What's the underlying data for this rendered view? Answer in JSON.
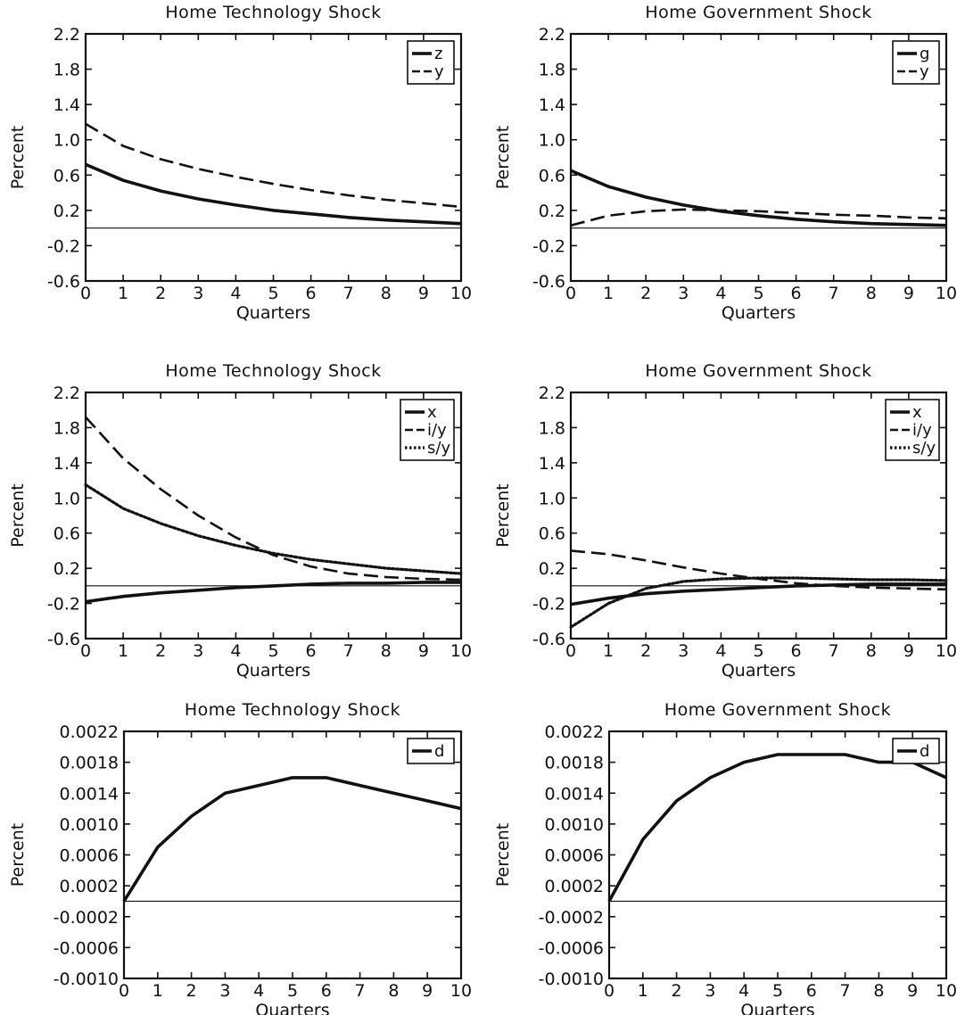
{
  "chart_data": [
    {
      "type": "line",
      "title": "Home Technology Shock",
      "xlabel": "Quarters",
      "ylabel": "Percent",
      "xlim": [
        0,
        10
      ],
      "ylim": [
        -0.6,
        2.2
      ],
      "x_ticks": [
        "0",
        "1",
        "2",
        "3",
        "4",
        "5",
        "6",
        "7",
        "8",
        "9",
        "10"
      ],
      "y_ticks": [
        "2.2",
        "1.8",
        "1.4",
        "1.0",
        "0.6",
        "0.2",
        "-0.2",
        "-0.6"
      ],
      "x": [
        0,
        1,
        2,
        3,
        4,
        5,
        6,
        7,
        8,
        9,
        10
      ],
      "legend_position": "top-right",
      "series": [
        {
          "name": "z",
          "style": "solid",
          "values": [
            0.72,
            0.54,
            0.42,
            0.33,
            0.26,
            0.2,
            0.16,
            0.12,
            0.09,
            0.07,
            0.05
          ]
        },
        {
          "name": "y",
          "style": "dashed",
          "values": [
            1.18,
            0.93,
            0.78,
            0.67,
            0.58,
            0.5,
            0.43,
            0.37,
            0.32,
            0.28,
            0.24
          ]
        }
      ]
    },
    {
      "type": "line",
      "title": "Home Government Shock",
      "xlabel": "Quarters",
      "ylabel": "Percent",
      "xlim": [
        0,
        10
      ],
      "ylim": [
        -0.6,
        2.2
      ],
      "x_ticks": [
        "0",
        "1",
        "2",
        "3",
        "4",
        "5",
        "6",
        "7",
        "8",
        "9",
        "10"
      ],
      "y_ticks": [
        "2.2",
        "1.8",
        "1.4",
        "1.0",
        "0.6",
        "0.2",
        "-0.2",
        "-0.6"
      ],
      "x": [
        0,
        1,
        2,
        3,
        4,
        5,
        6,
        7,
        8,
        9,
        10
      ],
      "legend_position": "top-right",
      "series": [
        {
          "name": "g",
          "style": "solid",
          "values": [
            0.65,
            0.47,
            0.35,
            0.26,
            0.19,
            0.14,
            0.1,
            0.07,
            0.05,
            0.04,
            0.03
          ]
        },
        {
          "name": "y",
          "style": "dashed",
          "values": [
            0.03,
            0.14,
            0.19,
            0.21,
            0.2,
            0.19,
            0.17,
            0.15,
            0.14,
            0.12,
            0.11
          ]
        }
      ]
    },
    {
      "type": "line",
      "title": "Home Technology Shock",
      "xlabel": "Quarters",
      "ylabel": "Percent",
      "xlim": [
        0,
        10
      ],
      "ylim": [
        -0.6,
        2.2
      ],
      "x_ticks": [
        "0",
        "1",
        "2",
        "3",
        "4",
        "5",
        "6",
        "7",
        "8",
        "9",
        "10"
      ],
      "y_ticks": [
        "2.2",
        "1.8",
        "1.4",
        "1.0",
        "0.6",
        "0.2",
        "-0.2",
        "-0.6"
      ],
      "x": [
        0,
        1,
        2,
        3,
        4,
        5,
        6,
        7,
        8,
        9,
        10
      ],
      "legend_position": "top-right",
      "series": [
        {
          "name": "x",
          "style": "solid",
          "values": [
            -0.18,
            -0.12,
            -0.08,
            -0.05,
            -0.02,
            0.0,
            0.02,
            0.03,
            0.03,
            0.04,
            0.04
          ]
        },
        {
          "name": "i/y",
          "style": "dashed",
          "values": [
            1.92,
            1.45,
            1.1,
            0.8,
            0.55,
            0.35,
            0.22,
            0.14,
            0.1,
            0.08,
            0.07
          ]
        },
        {
          "name": "s/y",
          "style": "dotted",
          "values": [
            1.15,
            0.88,
            0.71,
            0.57,
            0.46,
            0.37,
            0.3,
            0.25,
            0.2,
            0.17,
            0.14
          ]
        }
      ]
    },
    {
      "type": "line",
      "title": "Home Government Shock",
      "xlabel": "Quarters",
      "ylabel": "Percent",
      "xlim": [
        0,
        10
      ],
      "ylim": [
        -0.6,
        2.2
      ],
      "x_ticks": [
        "0",
        "1",
        "2",
        "3",
        "4",
        "5",
        "6",
        "7",
        "8",
        "9",
        "10"
      ],
      "y_ticks": [
        "2.2",
        "1.8",
        "1.4",
        "1.0",
        "0.6",
        "0.2",
        "-0.2",
        "-0.6"
      ],
      "x": [
        0,
        1,
        2,
        3,
        4,
        5,
        6,
        7,
        8,
        9,
        10
      ],
      "legend_position": "top-right",
      "series": [
        {
          "name": "x",
          "style": "solid",
          "values": [
            -0.21,
            -0.14,
            -0.09,
            -0.06,
            -0.04,
            -0.02,
            0.0,
            0.01,
            0.02,
            0.02,
            0.02
          ]
        },
        {
          "name": "i/y",
          "style": "dashed",
          "values": [
            0.4,
            0.36,
            0.29,
            0.21,
            0.14,
            0.08,
            0.03,
            0.0,
            -0.02,
            -0.03,
            -0.04
          ]
        },
        {
          "name": "s/y",
          "style": "dotted",
          "values": [
            -0.47,
            -0.2,
            -0.03,
            0.05,
            0.08,
            0.09,
            0.09,
            0.08,
            0.07,
            0.07,
            0.06
          ]
        }
      ]
    },
    {
      "type": "line",
      "title": "Home Technology Shock",
      "xlabel": "Quarters",
      "ylabel": "Percent",
      "xlim": [
        0,
        10
      ],
      "ylim": [
        -0.001,
        0.0022
      ],
      "x_ticks": [
        "0",
        "1",
        "2",
        "3",
        "4",
        "5",
        "6",
        "7",
        "8",
        "9",
        "10"
      ],
      "y_ticks": [
        "0.0022",
        "0.0018",
        "0.0014",
        "0.0010",
        "0.0006",
        "0.0002",
        "-0.0002",
        "-0.0006",
        "-0.0010"
      ],
      "x": [
        0,
        1,
        2,
        3,
        4,
        5,
        6,
        7,
        8,
        9,
        10
      ],
      "legend_position": "top-right",
      "series": [
        {
          "name": "d",
          "style": "solid",
          "values": [
            0.0,
            0.0007,
            0.0011,
            0.0014,
            0.0015,
            0.0016,
            0.0016,
            0.0015,
            0.0014,
            0.0013,
            0.0012
          ]
        }
      ]
    },
    {
      "type": "line",
      "title": "Home Government Shock",
      "xlabel": "Quarters",
      "ylabel": "Percent",
      "xlim": [
        0,
        10
      ],
      "ylim": [
        -0.001,
        0.0022
      ],
      "x_ticks": [
        "0",
        "1",
        "2",
        "3",
        "4",
        "5",
        "6",
        "7",
        "8",
        "9",
        "10"
      ],
      "y_ticks": [
        "0.0022",
        "0.0018",
        "0.0014",
        "0.0010",
        "0.0006",
        "0.0002",
        "-0.0002",
        "-0.0006",
        "-0.0010"
      ],
      "x": [
        0,
        1,
        2,
        3,
        4,
        5,
        6,
        7,
        8,
        9,
        10
      ],
      "legend_position": "top-right",
      "series": [
        {
          "name": "d",
          "style": "solid",
          "values": [
            0.0,
            0.0008,
            0.0013,
            0.0016,
            0.0018,
            0.0019,
            0.0019,
            0.0019,
            0.0018,
            0.0018,
            0.0016
          ]
        }
      ]
    }
  ]
}
